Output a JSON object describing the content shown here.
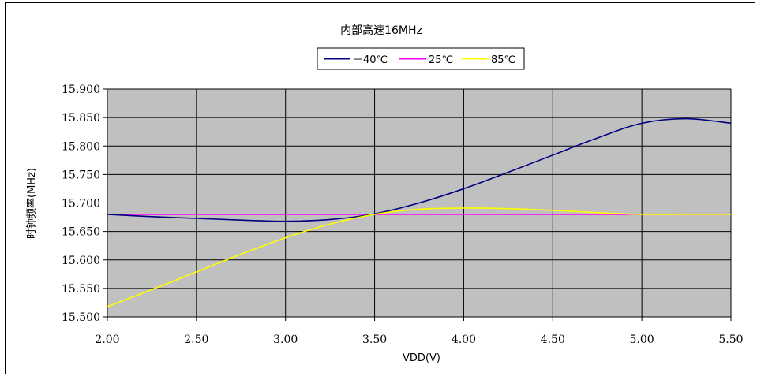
{
  "chart_data": {
    "type": "line",
    "title": "内部高速16MHz",
    "xlabel": "VDD(V)",
    "ylabel": "时钟频率(MHz)",
    "xlim": [
      2.0,
      5.5
    ],
    "ylim": [
      15.5,
      15.9
    ],
    "x_ticks": [
      "2.00",
      "2.50",
      "3.00",
      "3.50",
      "4.00",
      "4.50",
      "5.00",
      "5.50"
    ],
    "y_ticks": [
      "15.900",
      "15.850",
      "15.800",
      "15.750",
      "15.700",
      "15.650",
      "15.600",
      "15.550",
      "15.500"
    ],
    "grid": true,
    "legend_position": "top-center",
    "plot_background": "#c0c0c0",
    "series": [
      {
        "name": "－40℃",
        "color": "#000080",
        "x": [
          2.0,
          2.25,
          2.5,
          2.75,
          3.0,
          3.25,
          3.5,
          3.75,
          4.0,
          4.25,
          4.5,
          4.75,
          5.0,
          5.25,
          5.5
        ],
        "y": [
          15.68,
          15.676,
          15.673,
          15.67,
          15.668,
          15.671,
          15.681,
          15.7,
          15.725,
          15.754,
          15.784,
          15.814,
          15.84,
          15.848,
          15.84
        ]
      },
      {
        "name": "25℃",
        "color": "#ff00ff",
        "x": [
          2.0,
          5.5
        ],
        "y": [
          15.68,
          15.68
        ]
      },
      {
        "name": "85℃",
        "color": "#ffff00",
        "x": [
          2.0,
          2.25,
          2.5,
          2.75,
          3.0,
          3.25,
          3.5,
          3.75,
          4.0,
          4.25,
          4.5,
          4.75,
          5.0,
          5.25,
          5.5
        ],
        "y": [
          15.518,
          15.548,
          15.579,
          15.61,
          15.639,
          15.663,
          15.68,
          15.689,
          15.691,
          15.69,
          15.687,
          15.683,
          15.68,
          15.68,
          15.68
        ]
      }
    ]
  }
}
